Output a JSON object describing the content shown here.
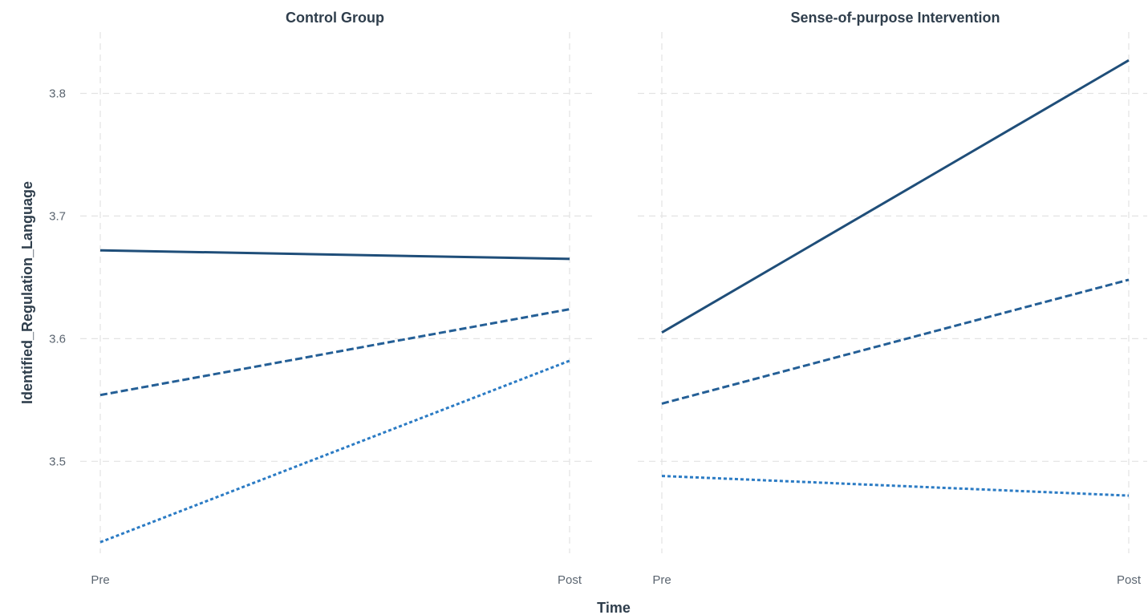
{
  "chart_data": {
    "type": "line",
    "x": [
      "Pre",
      "Post"
    ],
    "xlabel": "Time",
    "ylabel": "Identified_Regulation_Language",
    "ylim": [
      3.425,
      3.85
    ],
    "yticks": [
      "3.5",
      "3.6",
      "3.7",
      "3.8"
    ],
    "grid": true,
    "facets": [
      {
        "title": "Control Group",
        "series": [
          {
            "linetype": "solid",
            "color": "#1f4e79",
            "values": [
              3.672,
              3.665
            ]
          },
          {
            "linetype": "dashed",
            "color": "#245f96",
            "values": [
              3.554,
              3.624
            ]
          },
          {
            "linetype": "dotted",
            "color": "#2b7bc4",
            "values": [
              3.434,
              3.582
            ]
          }
        ]
      },
      {
        "title": "Sense-of-purpose Intervention",
        "series": [
          {
            "linetype": "solid",
            "color": "#1f4e79",
            "values": [
              3.605,
              3.827
            ]
          },
          {
            "linetype": "dashed",
            "color": "#245f96",
            "values": [
              3.547,
              3.648
            ]
          },
          {
            "linetype": "dotted",
            "color": "#2b7bc4",
            "values": [
              3.488,
              3.472
            ]
          }
        ]
      }
    ]
  }
}
